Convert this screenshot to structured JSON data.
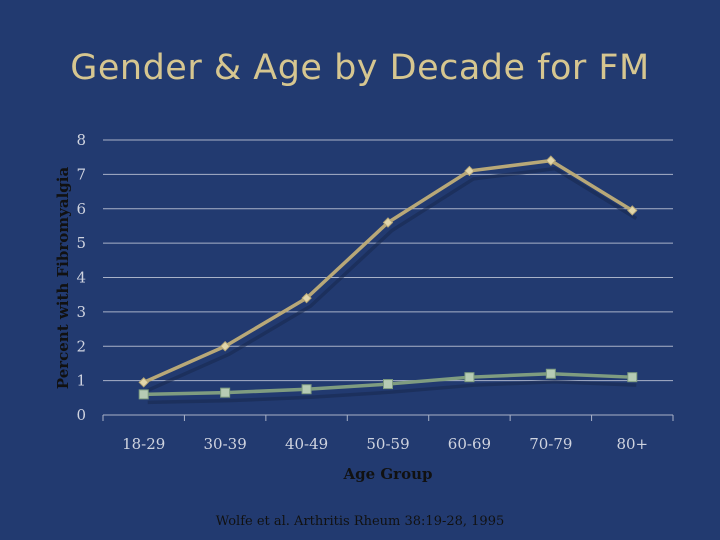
{
  "slide": {
    "title": "Gender & Age by Decade for FM",
    "citation": "Wolfe et al. Arthritis Rheum 38:19-28, 1995"
  },
  "colors": {
    "background": "#223a70",
    "title": "#d6c690",
    "series_female": "#b8a878",
    "series_male": "#7f9c80",
    "gridline": "#a9b2c8"
  },
  "chart_data": {
    "type": "line",
    "xlabel": "Age Group",
    "ylabel": "Percent with Fibromyalgia",
    "categories": [
      "18-29",
      "30-39",
      "40-49",
      "50-59",
      "60-69",
      "70-79",
      "80+"
    ],
    "ylim": [
      0,
      8
    ],
    "yticks": [
      0,
      1,
      2,
      3,
      4,
      5,
      6,
      7,
      8
    ],
    "grid": true,
    "legend": "none",
    "series": [
      {
        "marker": "diamond",
        "color": "#b8a878",
        "values": [
          0.95,
          2.0,
          3.4,
          5.6,
          7.1,
          7.4,
          5.95
        ]
      },
      {
        "marker": "square",
        "color": "#7f9c80",
        "values": [
          0.6,
          0.65,
          0.75,
          0.9,
          1.1,
          1.2,
          1.1
        ]
      }
    ]
  }
}
